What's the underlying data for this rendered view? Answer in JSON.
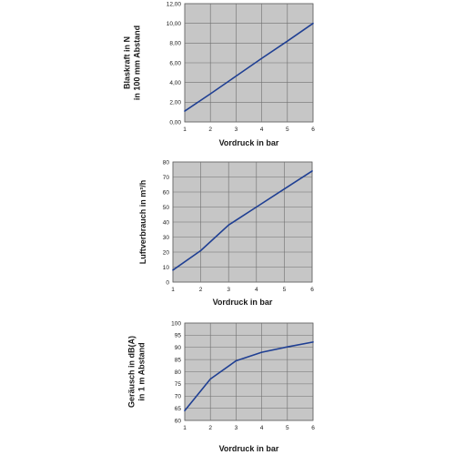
{
  "series_color": "#1f3f93",
  "chart_data": [
    {
      "type": "line",
      "xlabel": "Vordruck in bar",
      "ylabel_lines": [
        "Blaskraft in N",
        "in 100 mm Abstand"
      ],
      "x_ticks": [
        "1",
        "2",
        "3",
        "4",
        "5",
        "6"
      ],
      "y_ticks": [
        "0,00",
        "2,00",
        "4,00",
        "6,00",
        "8,00",
        "10,00",
        "12,00"
      ],
      "xlim": [
        1,
        6
      ],
      "ylim": [
        0,
        12
      ],
      "grid": true,
      "x": [
        1,
        2,
        3,
        4,
        5,
        6
      ],
      "series": [
        {
          "values": [
            1.1,
            2.85,
            4.65,
            6.45,
            8.2,
            10.0
          ]
        }
      ]
    },
    {
      "type": "line",
      "xlabel": "Vordruck in bar",
      "ylabel_lines": [
        "Luftverbrauch in m³/h"
      ],
      "x_ticks": [
        "1",
        "2",
        "3",
        "4",
        "5",
        "6"
      ],
      "y_ticks": [
        "0",
        "10",
        "20",
        "30",
        "40",
        "50",
        "60",
        "70",
        "80"
      ],
      "xlim": [
        1,
        6
      ],
      "ylim": [
        0,
        80
      ],
      "grid": true,
      "x": [
        1,
        2,
        3,
        4,
        5,
        6
      ],
      "series": [
        {
          "values": [
            8,
            21,
            38,
            50,
            62,
            74
          ]
        }
      ]
    },
    {
      "type": "line",
      "xlabel": "Vordruck in bar",
      "ylabel_lines": [
        "Geräusch in dB(A)",
        "in 1 m Abstand"
      ],
      "x_ticks": [
        "1",
        "2",
        "3",
        "4",
        "5",
        "6"
      ],
      "y_ticks": [
        "60",
        "65",
        "70",
        "75",
        "80",
        "85",
        "90",
        "95",
        "100"
      ],
      "xlim": [
        1,
        6
      ],
      "ylim": [
        60,
        100
      ],
      "grid": true,
      "x": [
        1,
        2,
        3,
        4,
        5,
        6
      ],
      "series": [
        {
          "values": [
            64,
            77,
            84.5,
            88,
            90.2,
            92.2
          ]
        }
      ]
    }
  ]
}
